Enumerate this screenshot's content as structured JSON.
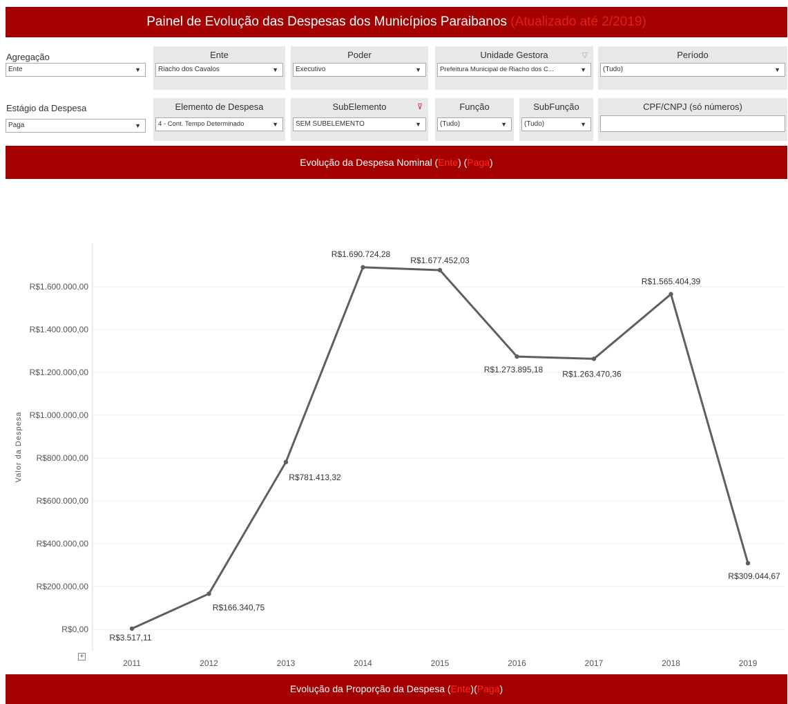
{
  "header": {
    "title": "Painel de Evolução das Despesas dos Municípios Paraibanos",
    "updated": "(Atualizado até 2/2019)"
  },
  "filters": {
    "agregacao": {
      "label": "Agregação",
      "value": "Ente"
    },
    "ente": {
      "label": "Ente",
      "value": "Riacho dos Cavalos"
    },
    "poder": {
      "label": "Poder",
      "value": "Executivo"
    },
    "unidade_gestora": {
      "label": "Unidade Gestora",
      "value": "Prefeitura Municipal de Riacho dos C..."
    },
    "periodo": {
      "label": "Período",
      "value": "(Tudo)"
    },
    "estagio": {
      "label": "Estágio da Despesa",
      "value": "Paga"
    },
    "elemento": {
      "label": "Elemento de Despesa",
      "value": "4 - Cont. Tempo Determinado"
    },
    "subelemento": {
      "label": "SubElemento",
      "value": "SEM SUBELEMENTO"
    },
    "funcao": {
      "label": "Função",
      "value": "(Tudo)"
    },
    "subfuncao": {
      "label": "SubFunção",
      "value": "(Tudo)"
    },
    "cpf": {
      "label": "CPF/CNPJ (só números)",
      "value": ""
    }
  },
  "chart_banner": {
    "prefix": "Evolução da Despesa Nominal (",
    "ente": "Ente",
    "middle": ") (",
    "paga": "Paga",
    "suffix": ")"
  },
  "bottom_banner": {
    "prefix": "Evolução da Proporção da Despesa (",
    "ente": "Ente",
    "middle": ")(",
    "paga": "Paga",
    "suffix": ")"
  },
  "expand_glyph": "+",
  "colors": {
    "banner": "#a50000",
    "highlight": "#e0201a",
    "line": "#5f5f5f"
  },
  "chart_data": {
    "type": "line",
    "ylabel": "Valor da Despesa",
    "x": [
      "2011",
      "2012",
      "2013",
      "2014",
      "2015",
      "2016",
      "2017",
      "2018",
      "2019"
    ],
    "values": [
      3517.11,
      166340.75,
      781413.32,
      1690724.28,
      1677452.03,
      1273895.18,
      1263470.36,
      1565404.39,
      309044.67
    ],
    "data_labels": [
      "R$3.517,11",
      "R$166.340,75",
      "R$781.413,32",
      "R$1.690.724,28",
      "R$1.677.452,03",
      "R$1.273.895,18",
      "R$1.263.470,36",
      "R$1.565.404,39",
      "R$309.044,67"
    ],
    "yticks": [
      0,
      200000,
      400000,
      600000,
      800000,
      1000000,
      1200000,
      1400000,
      1600000
    ],
    "ytick_labels": [
      "R$0,00",
      "R$200.000,00",
      "R$400.000,00",
      "R$600.000,00",
      "R$800.000,00",
      "R$1.000.000,00",
      "R$1.200.000,00",
      "R$1.400.000,00",
      "R$1.600.000,00"
    ],
    "ylim": [
      0,
      1800000
    ],
    "grid": "horizontal"
  }
}
